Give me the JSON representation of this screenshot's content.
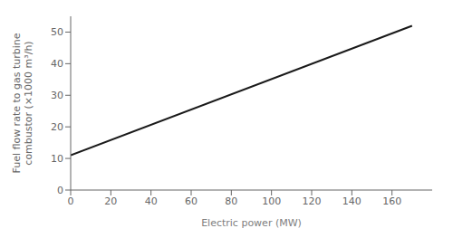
{
  "chart_data": {
    "type": "line",
    "x": [
      0,
      170
    ],
    "series": [
      {
        "values": [
          11.0,
          52.0
        ],
        "color": "#1a1a1a"
      }
    ],
    "xlim": [
      0,
      180
    ],
    "ylim": [
      0,
      55
    ],
    "xticks": [
      0,
      20,
      40,
      60,
      80,
      100,
      120,
      140,
      160
    ],
    "yticks": [
      0,
      10,
      20,
      30,
      40,
      50
    ],
    "xlabel": "Electric power (MW)",
    "ylabel": "Fuel flow rate to gas turbine\ncombustor (×1000 m³/h)",
    "grid": false
  }
}
